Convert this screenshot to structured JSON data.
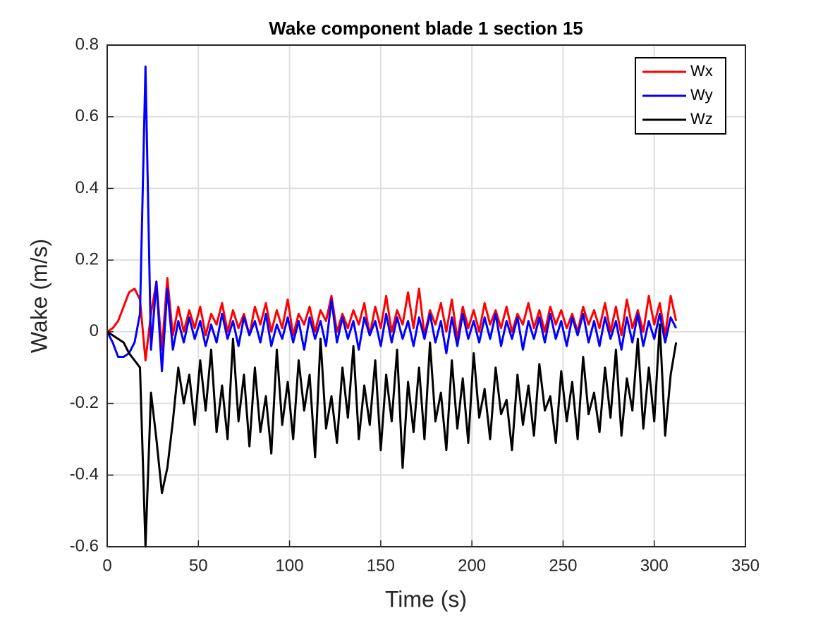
{
  "chart_data": {
    "type": "line",
    "title": "Wake component blade 1 section 15",
    "xlabel": "Time (s)",
    "ylabel": "Wake (m/s)",
    "x": [
      0,
      3,
      6,
      9,
      12,
      15,
      18,
      21,
      24,
      27,
      30,
      33,
      36,
      39,
      42,
      45,
      48,
      51,
      54,
      57,
      60,
      63,
      66,
      69,
      72,
      75,
      78,
      81,
      84,
      87,
      90,
      93,
      96,
      99,
      102,
      105,
      108,
      111,
      114,
      117,
      120,
      123,
      126,
      129,
      132,
      135,
      138,
      141,
      144,
      147,
      150,
      153,
      156,
      159,
      162,
      165,
      168,
      171,
      174,
      177,
      180,
      183,
      186,
      189,
      192,
      195,
      198,
      201,
      204,
      207,
      210,
      213,
      216,
      219,
      222,
      225,
      228,
      231,
      234,
      237,
      240,
      243,
      246,
      249,
      252,
      255,
      258,
      261,
      264,
      267,
      270,
      273,
      276,
      279,
      282,
      285,
      288,
      291,
      294,
      297,
      300,
      303,
      306,
      309,
      312
    ],
    "series": [
      {
        "name": "Wx",
        "color": "#ff0000",
        "values": [
          0,
          0.01,
          0.03,
          0.07,
          0.11,
          0.12,
          0.09,
          -0.08,
          0.05,
          0.14,
          -0.05,
          0.15,
          -0.01,
          0.07,
          0.0,
          0.06,
          0.01,
          0.07,
          -0.01,
          0.05,
          0.02,
          0.08,
          0.0,
          0.06,
          0.01,
          0.05,
          -0.01,
          0.07,
          0.02,
          0.08,
          0.0,
          0.06,
          0.01,
          0.09,
          -0.01,
          0.05,
          0.02,
          0.07,
          0.0,
          0.06,
          0.03,
          0.1,
          0.0,
          0.05,
          0.01,
          0.06,
          0.02,
          0.08,
          -0.01,
          0.07,
          0.01,
          0.1,
          0.0,
          0.06,
          0.02,
          0.11,
          0.01,
          0.12,
          -0.01,
          0.06,
          0.02,
          0.08,
          0.0,
          0.09,
          -0.02,
          0.07,
          0.01,
          0.06,
          0.0,
          0.08,
          0.02,
          0.06,
          0.01,
          0.07,
          0.0,
          0.05,
          0.02,
          0.08,
          0.01,
          0.06,
          0.0,
          0.07,
          0.02,
          0.06,
          0.01,
          0.05,
          0.0,
          0.07,
          0.02,
          0.06,
          0.01,
          0.08,
          0.0,
          0.07,
          -0.01,
          0.09,
          0.01,
          0.06,
          0.0,
          0.1,
          0.02,
          0.08,
          -0.01,
          0.1,
          0.03
        ]
      },
      {
        "name": "Wy",
        "color": "#0000ff",
        "values": [
          0,
          -0.03,
          -0.07,
          -0.07,
          -0.06,
          -0.03,
          0.05,
          0.74,
          -0.05,
          0.14,
          -0.11,
          0.12,
          -0.05,
          0.03,
          -0.03,
          0.04,
          -0.02,
          0.03,
          -0.04,
          0.02,
          -0.03,
          0.05,
          -0.02,
          0.03,
          -0.04,
          0.04,
          -0.01,
          0.03,
          -0.03,
          0.05,
          -0.04,
          0.02,
          -0.02,
          0.04,
          -0.03,
          0.03,
          -0.05,
          0.04,
          -0.02,
          0.03,
          -0.04,
          0.09,
          -0.03,
          0.04,
          -0.02,
          0.03,
          -0.05,
          0.04,
          -0.01,
          0.03,
          -0.04,
          0.05,
          -0.03,
          0.04,
          -0.02,
          0.03,
          -0.04,
          0.04,
          -0.02,
          0.05,
          -0.03,
          0.03,
          -0.06,
          0.04,
          -0.04,
          0.05,
          -0.02,
          0.03,
          -0.03,
          0.04,
          -0.02,
          0.05,
          -0.04,
          0.03,
          -0.02,
          0.04,
          -0.05,
          0.03,
          -0.02,
          0.04,
          -0.03,
          0.05,
          -0.02,
          0.03,
          -0.04,
          0.04,
          -0.01,
          0.05,
          -0.03,
          0.03,
          -0.04,
          0.04,
          -0.02,
          0.03,
          -0.05,
          0.04,
          -0.03,
          0.05,
          -0.04,
          0.03,
          -0.02,
          0.05,
          -0.03,
          0.04,
          0.01
        ]
      },
      {
        "name": "Wz",
        "color": "#000000",
        "values": [
          0,
          -0.01,
          -0.02,
          -0.03,
          -0.06,
          -0.08,
          -0.1,
          -0.6,
          -0.17,
          -0.3,
          -0.45,
          -0.38,
          -0.25,
          -0.1,
          -0.2,
          -0.12,
          -0.26,
          -0.08,
          -0.22,
          -0.05,
          -0.28,
          -0.15,
          -0.3,
          -0.02,
          -0.25,
          -0.12,
          -0.32,
          -0.1,
          -0.28,
          -0.18,
          -0.34,
          -0.05,
          -0.26,
          -0.14,
          -0.3,
          -0.08,
          -0.22,
          -0.12,
          -0.35,
          -0.02,
          -0.27,
          -0.18,
          -0.31,
          -0.1,
          -0.24,
          -0.04,
          -0.3,
          -0.15,
          -0.26,
          -0.08,
          -0.33,
          -0.12,
          -0.25,
          -0.05,
          -0.38,
          -0.14,
          -0.28,
          -0.1,
          -0.3,
          -0.03,
          -0.25,
          -0.17,
          -0.33,
          -0.08,
          -0.27,
          -0.13,
          -0.31,
          -0.06,
          -0.24,
          -0.16,
          -0.3,
          -0.1,
          -0.23,
          -0.19,
          -0.33,
          -0.12,
          -0.26,
          -0.15,
          -0.29,
          -0.09,
          -0.22,
          -0.18,
          -0.31,
          -0.11,
          -0.25,
          -0.14,
          -0.3,
          -0.07,
          -0.23,
          -0.17,
          -0.28,
          -0.1,
          -0.24,
          -0.05,
          -0.29,
          -0.13,
          -0.22,
          -0.02,
          -0.27,
          -0.1,
          -0.25,
          0.02,
          -0.29,
          -0.12,
          -0.03
        ]
      }
    ],
    "xlim": [
      0,
      350
    ],
    "xticks": [
      0,
      50,
      100,
      150,
      200,
      250,
      300,
      350
    ],
    "ylim": [
      -0.6,
      0.8
    ],
    "yticks": [
      -0.6,
      -0.4,
      -0.2,
      0,
      0.2,
      0.4,
      0.6,
      0.8
    ],
    "grid": true,
    "legend": "top-right"
  }
}
